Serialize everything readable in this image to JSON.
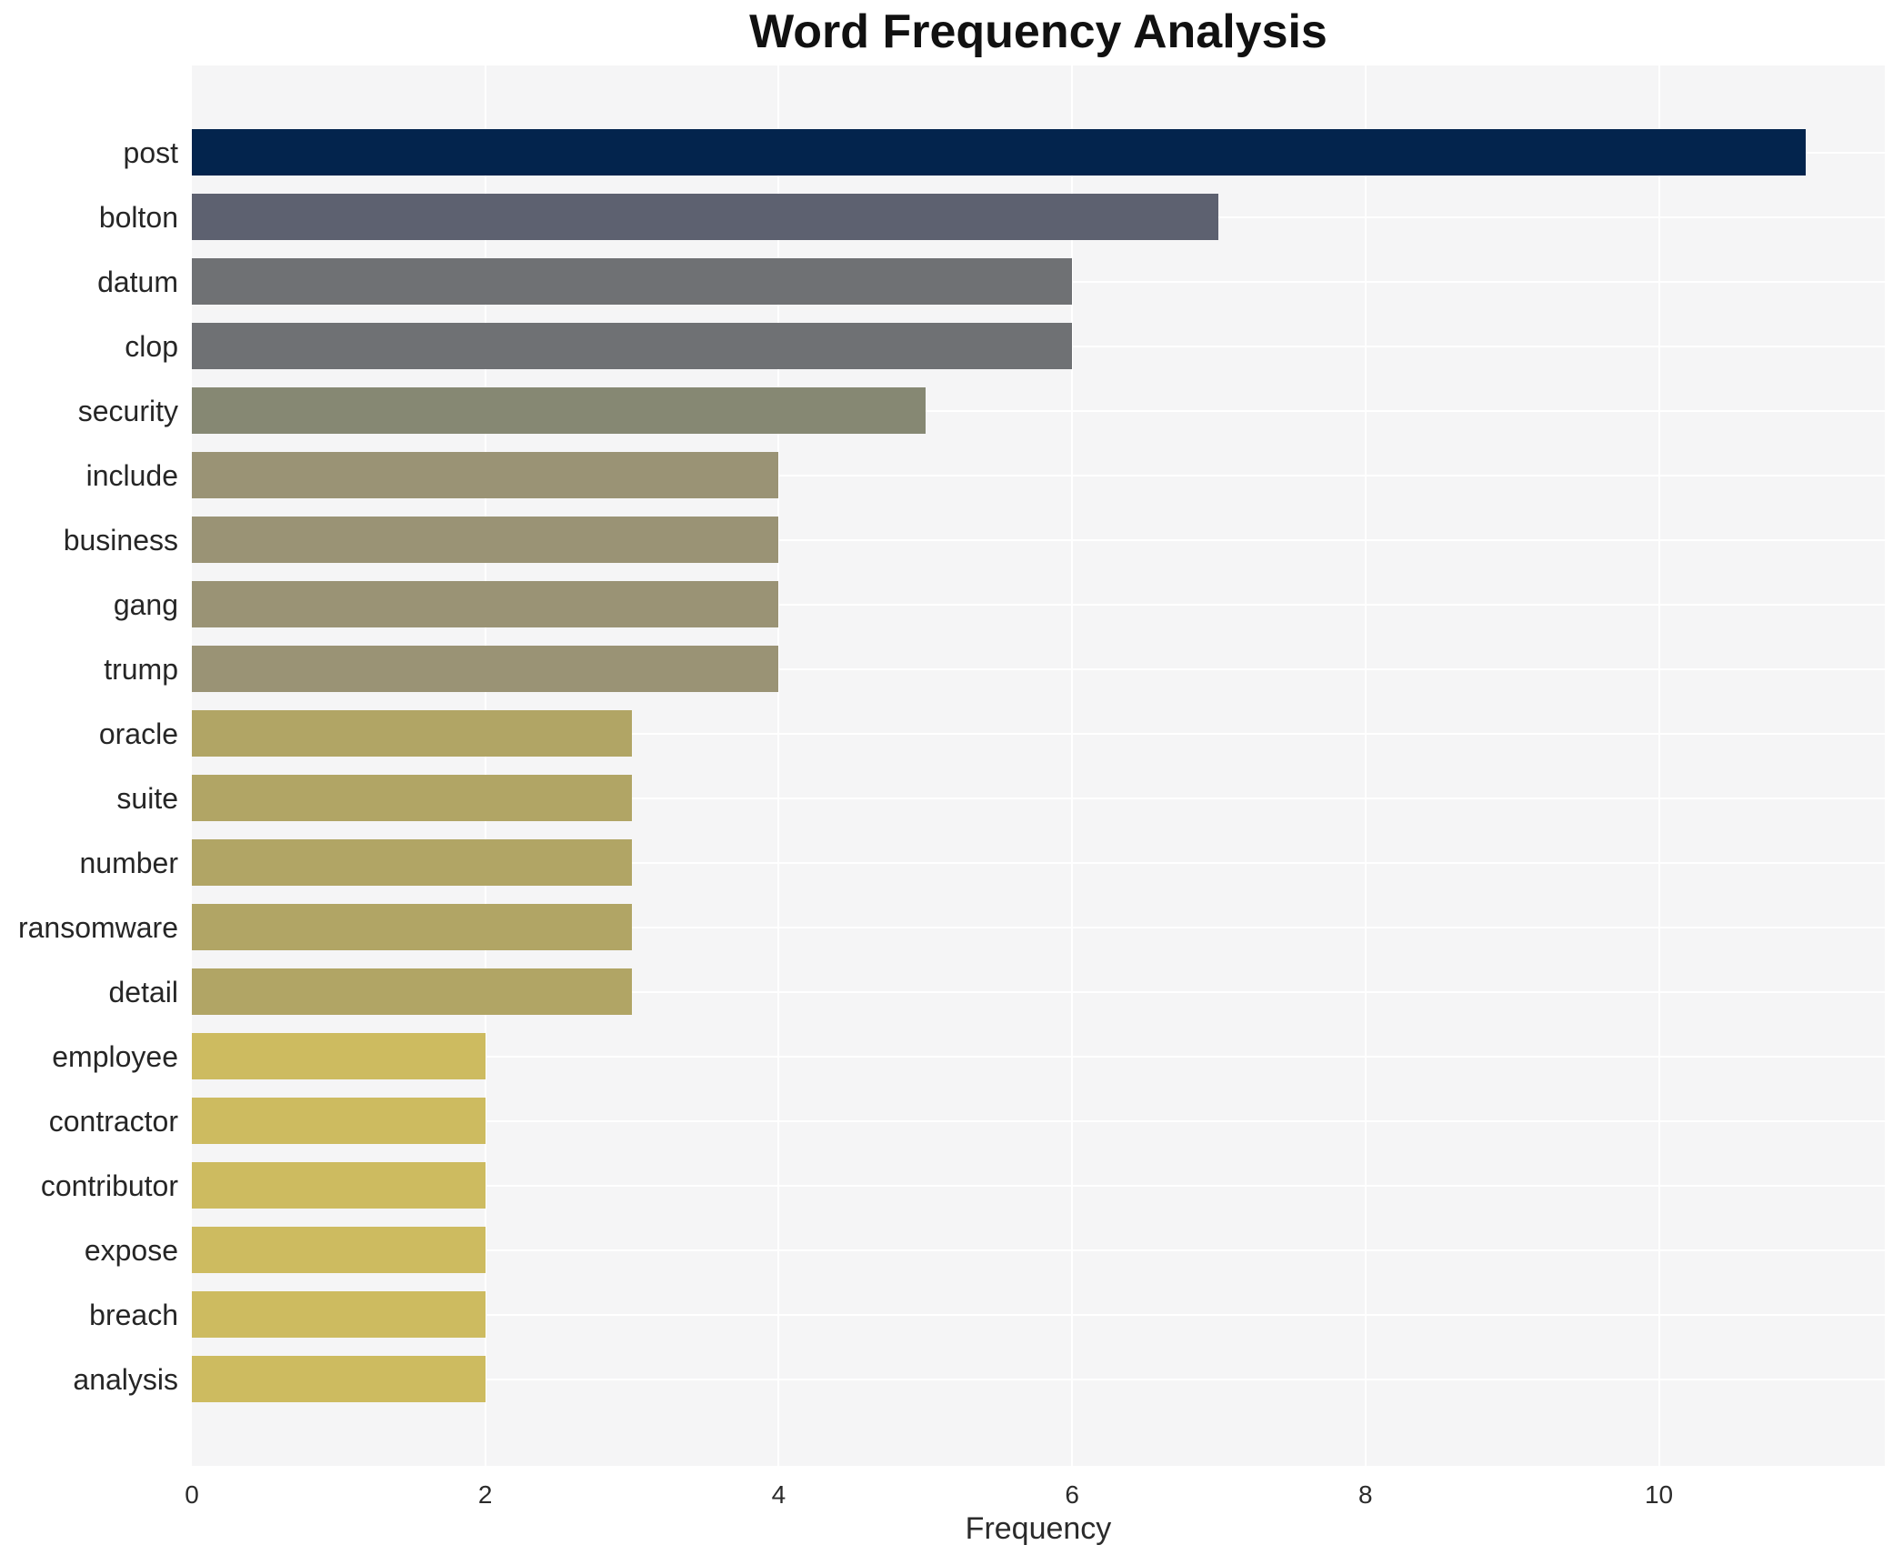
{
  "title": "Word Frequency Analysis",
  "chart_data": {
    "type": "bar",
    "orientation": "horizontal",
    "title": "Word Frequency Analysis",
    "xlabel": "Frequency",
    "ylabel": "",
    "categories": [
      "post",
      "bolton",
      "datum",
      "clop",
      "security",
      "include",
      "business",
      "gang",
      "trump",
      "oracle",
      "suite",
      "number",
      "ransomware",
      "detail",
      "employee",
      "contractor",
      "contributor",
      "expose",
      "breach",
      "analysis"
    ],
    "values": [
      11,
      7,
      6,
      6,
      5,
      4,
      4,
      4,
      4,
      3,
      3,
      3,
      3,
      3,
      2,
      2,
      2,
      2,
      2,
      2
    ],
    "bar_colors": [
      "#03244d",
      "#5d6170",
      "#6f7174",
      "#6f7174",
      "#868873",
      "#9a9375",
      "#9a9375",
      "#9a9375",
      "#9a9375",
      "#b1a565",
      "#b1a565",
      "#b1a565",
      "#b1a565",
      "#b1a565",
      "#cdbb60",
      "#cdbb60",
      "#cdbb60",
      "#cdbb60",
      "#cdbb60",
      "#cdbb60"
    ],
    "xlim": [
      0,
      11.54
    ],
    "xticks": [
      0,
      2,
      4,
      6,
      8,
      10
    ],
    "grid": true,
    "legend": "none",
    "plot_bg": "#f5f5f6",
    "grid_color": "#ffffff"
  }
}
